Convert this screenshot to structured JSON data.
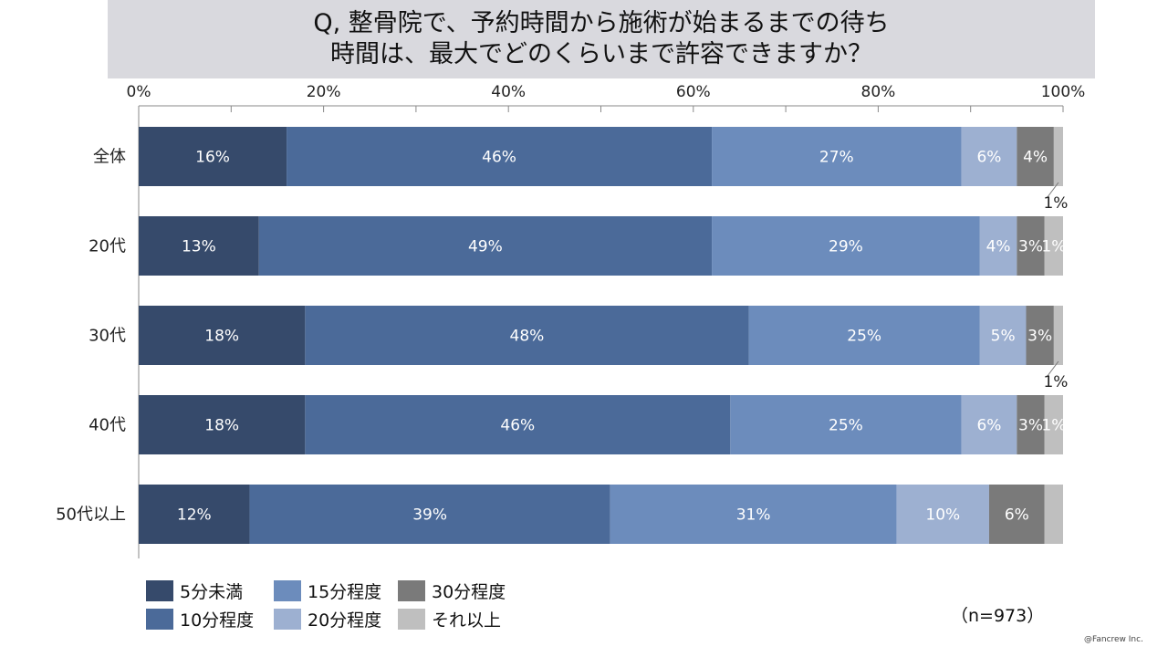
{
  "title_lines": [
    "Q, 整骨院で、予約時間から施術が始まるまでの待ち",
    "時間は、最大でどのくらいまで許容できますか？"
  ],
  "sample_size": "（n=973）",
  "credit": "@Fancrew Inc.",
  "colors": [
    "#364a6b",
    "#4b6a99",
    "#6c8cbc",
    "#9db0d1",
    "#7a7a7a",
    "#bfbfbf"
  ],
  "chart_data": {
    "type": "bar",
    "orientation": "horizontal",
    "stacked": true,
    "xlim": [
      0,
      100
    ],
    "x_ticks": [
      "0%",
      "20%",
      "40%",
      "60%",
      "80%",
      "100%"
    ],
    "categories": [
      "全体",
      "20代",
      "30代",
      "40代",
      "50代以上"
    ],
    "series": [
      {
        "name": "5分未満",
        "values": [
          16,
          13,
          18,
          18,
          12
        ],
        "labels": [
          "16%",
          "13%",
          "18%",
          "18%",
          "12%"
        ]
      },
      {
        "name": "10分程度",
        "values": [
          46,
          49,
          48,
          46,
          39
        ],
        "labels": [
          "46%",
          "49%",
          "48%",
          "46%",
          "39%"
        ]
      },
      {
        "name": "15分程度",
        "values": [
          27,
          29,
          25,
          25,
          31
        ],
        "labels": [
          "27%",
          "29%",
          "25%",
          "25%",
          "31%"
        ]
      },
      {
        "name": "20分程度",
        "values": [
          6,
          4,
          5,
          6,
          10
        ],
        "labels": [
          "6%",
          "4%",
          "5%",
          "6%",
          "10%"
        ]
      },
      {
        "name": "30分程度",
        "values": [
          4,
          3,
          3,
          3,
          6
        ],
        "labels": [
          "4%",
          "3%",
          "3%",
          "3%",
          "6%"
        ]
      },
      {
        "name": "それ以上",
        "values": [
          1,
          1,
          1,
          1,
          0.5
        ],
        "labels": [
          "1%",
          "1%",
          "1%",
          "1%",
          ""
        ]
      }
    ],
    "legend": {
      "position": "bottom-left"
    }
  }
}
